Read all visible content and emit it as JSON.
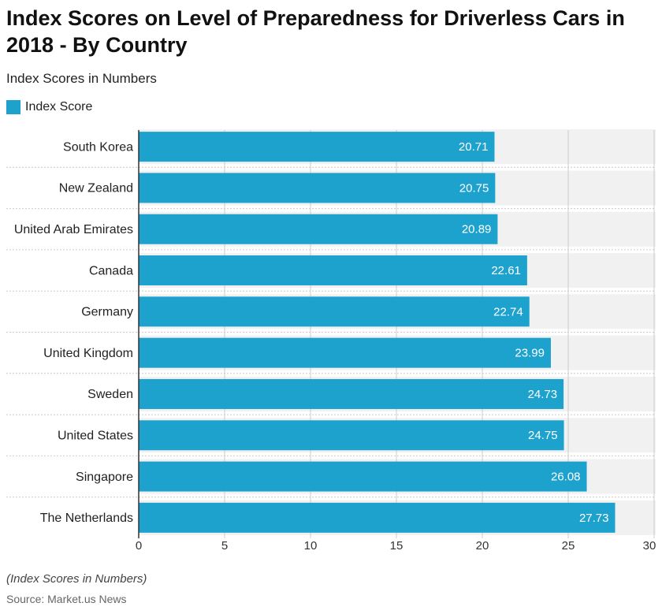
{
  "chart_data": {
    "type": "hbar",
    "title": "Index Scores on Level of Preparedness for Driverless Cars in 2018 - By Country",
    "subtitle": "Index Scores in Numbers",
    "categories": [
      "South Korea",
      "New Zealand",
      "United Arab Emirates",
      "Canada",
      "Germany",
      "United Kingdom",
      "Sweden",
      "United States",
      "Singapore",
      "The Netherlands"
    ],
    "series": [
      {
        "name": "Index Score",
        "color": "#1da2ce",
        "values": [
          20.71,
          20.75,
          20.89,
          22.61,
          22.74,
          23.99,
          24.73,
          24.75,
          26.08,
          27.73
        ]
      }
    ],
    "xlim": [
      0,
      30
    ],
    "xticks": [
      0,
      5,
      10,
      15,
      20,
      25,
      30
    ],
    "grid": true,
    "note": "(Index Scores in Numbers)",
    "source": "Source: Market.us News"
  }
}
